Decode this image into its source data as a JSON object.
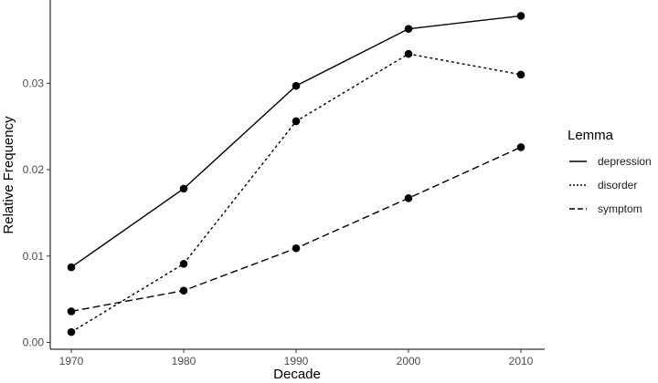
{
  "chart_data": {
    "type": "line",
    "title": "",
    "xlabel": "Decade",
    "ylabel": "Relative Frequency",
    "x": [
      1970,
      1980,
      1990,
      2000,
      2010
    ],
    "xticks": [
      "1970",
      "1980",
      "1990",
      "2000",
      "2010"
    ],
    "yticks": [
      "0.00",
      "0.01",
      "0.02",
      "0.03"
    ],
    "ylim": [
      0.0,
      0.039
    ],
    "grid": false,
    "legend": {
      "title": "Lemma",
      "position": "right"
    },
    "series": [
      {
        "name": "depression",
        "line_style": "solid",
        "values": [
          0.0087,
          0.0178,
          0.0297,
          0.0363,
          0.0378
        ]
      },
      {
        "name": "disorder",
        "line_style": "dotted",
        "values": [
          0.0012,
          0.0091,
          0.0256,
          0.0334,
          0.031
        ]
      },
      {
        "name": "symptom",
        "line_style": "dashed",
        "values": [
          0.0036,
          0.006,
          0.0109,
          0.0167,
          0.0226
        ]
      }
    ],
    "colors": {
      "line": "#000000",
      "axis": "#000000",
      "tick_text": "#4d4d4d"
    }
  }
}
